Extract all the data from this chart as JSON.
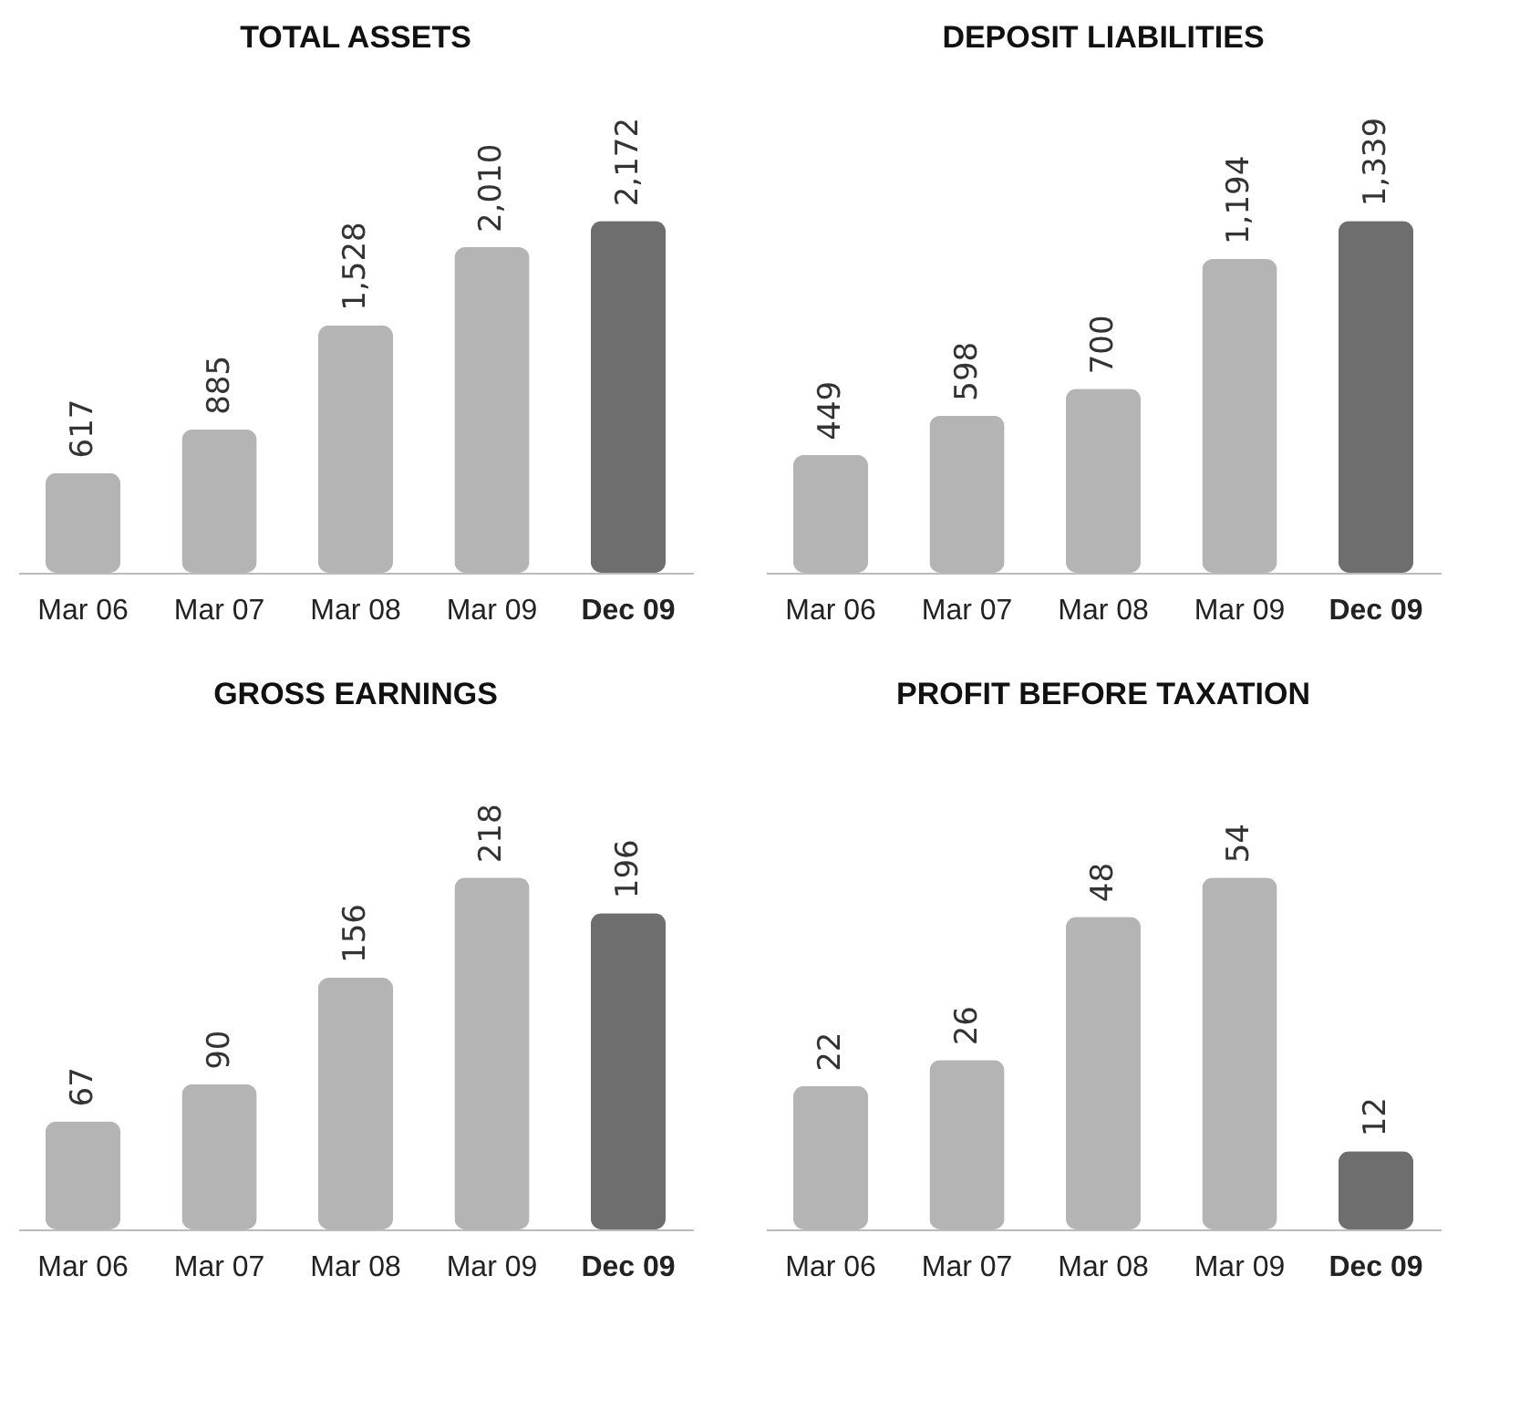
{
  "chart_data": [
    {
      "type": "bar",
      "title": "TOTAL ASSETS",
      "categories": [
        "Mar 06",
        "Mar 07",
        "Mar 08",
        "Mar 09",
        "Dec 09"
      ],
      "values": [
        617,
        885,
        1528,
        2010,
        2172
      ],
      "value_labels": [
        "617",
        "885",
        "1,528",
        "2,010",
        "2,172"
      ],
      "colors": [
        "#b4b4b4",
        "#b4b4b4",
        "#b4b4b4",
        "#b4b4b4",
        "#6e6e6e"
      ]
    },
    {
      "type": "bar",
      "title": "DEPOSIT LIABILITIES",
      "categories": [
        "Mar 06",
        "Mar 07",
        "Mar 08",
        "Mar 09",
        "Dec 09"
      ],
      "values": [
        449,
        598,
        700,
        1194,
        1339
      ],
      "value_labels": [
        "449",
        "598",
        "700",
        "1,194",
        "1,339"
      ],
      "colors": [
        "#b4b4b4",
        "#b4b4b4",
        "#b4b4b4",
        "#b4b4b4",
        "#6e6e6e"
      ]
    },
    {
      "type": "bar",
      "title": "GROSS EARNINGS",
      "categories": [
        "Mar 06",
        "Mar 07",
        "Mar 08",
        "Mar 09",
        "Dec 09"
      ],
      "values": [
        67,
        90,
        156,
        218,
        196
      ],
      "colors": [
        "#b4b4b4",
        "#b4b4b4",
        "#b4b4b4",
        "#b4b4b4",
        "#6e6e6e"
      ],
      "data_labels": true
    },
    {
      "type": "bar",
      "title": "PROFIT BEFORE TAXATION",
      "categories": [
        "Mar 06",
        "Mar 07",
        "Mar 08",
        "Mar 09",
        "Dec 09"
      ],
      "values": [
        22,
        26,
        48,
        54,
        12
      ],
      "colors": [
        "#b4b4b4",
        "#b4b4b4",
        "#b4b4b4",
        "#b4b4b4",
        "#6e6e6e"
      ],
      "data_labels": true
    }
  ]
}
